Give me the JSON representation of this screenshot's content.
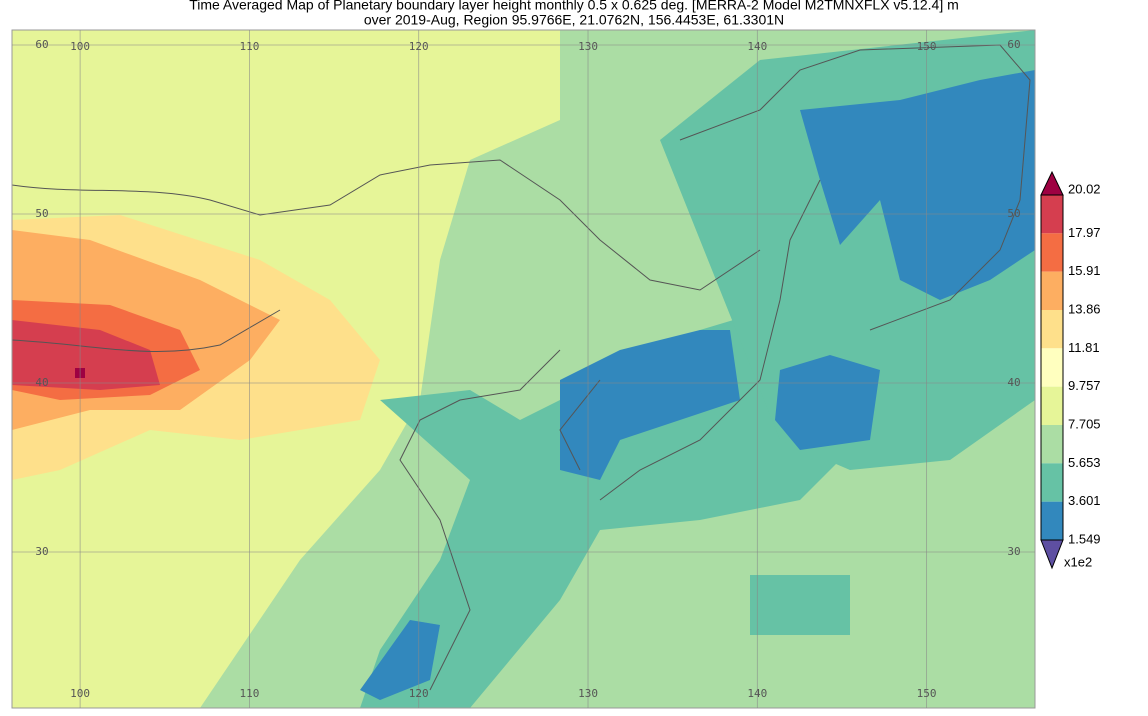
{
  "title": [
    "Time Averaged Map of Planetary boundary layer height monthly 0.5 x 0.625 deg. [MERRA-2 Model M2TMNXFLX v5.12.4] m",
    "over 2019-Aug, Region 95.9766E, 21.0762N, 156.4453E, 61.3301N"
  ],
  "map": {
    "lon_labels": [
      100,
      110,
      120,
      130,
      140,
      150
    ],
    "lat_labels": [
      60,
      50,
      40,
      30
    ]
  },
  "colorbar": {
    "levels": [
      20.02,
      17.97,
      15.91,
      13.86,
      11.81,
      9.757,
      7.705,
      5.653,
      3.601,
      1.549
    ],
    "colors": [
      "#d53e4f",
      "#f46d43",
      "#fdae61",
      "#fee08b",
      "#ffffbf",
      "#e6f598",
      "#abdda4",
      "#66c2a5",
      "#3288bd"
    ],
    "over_color": "#9e0142",
    "under_color": "#5e4fa2",
    "scale_label": "x1e2"
  }
}
